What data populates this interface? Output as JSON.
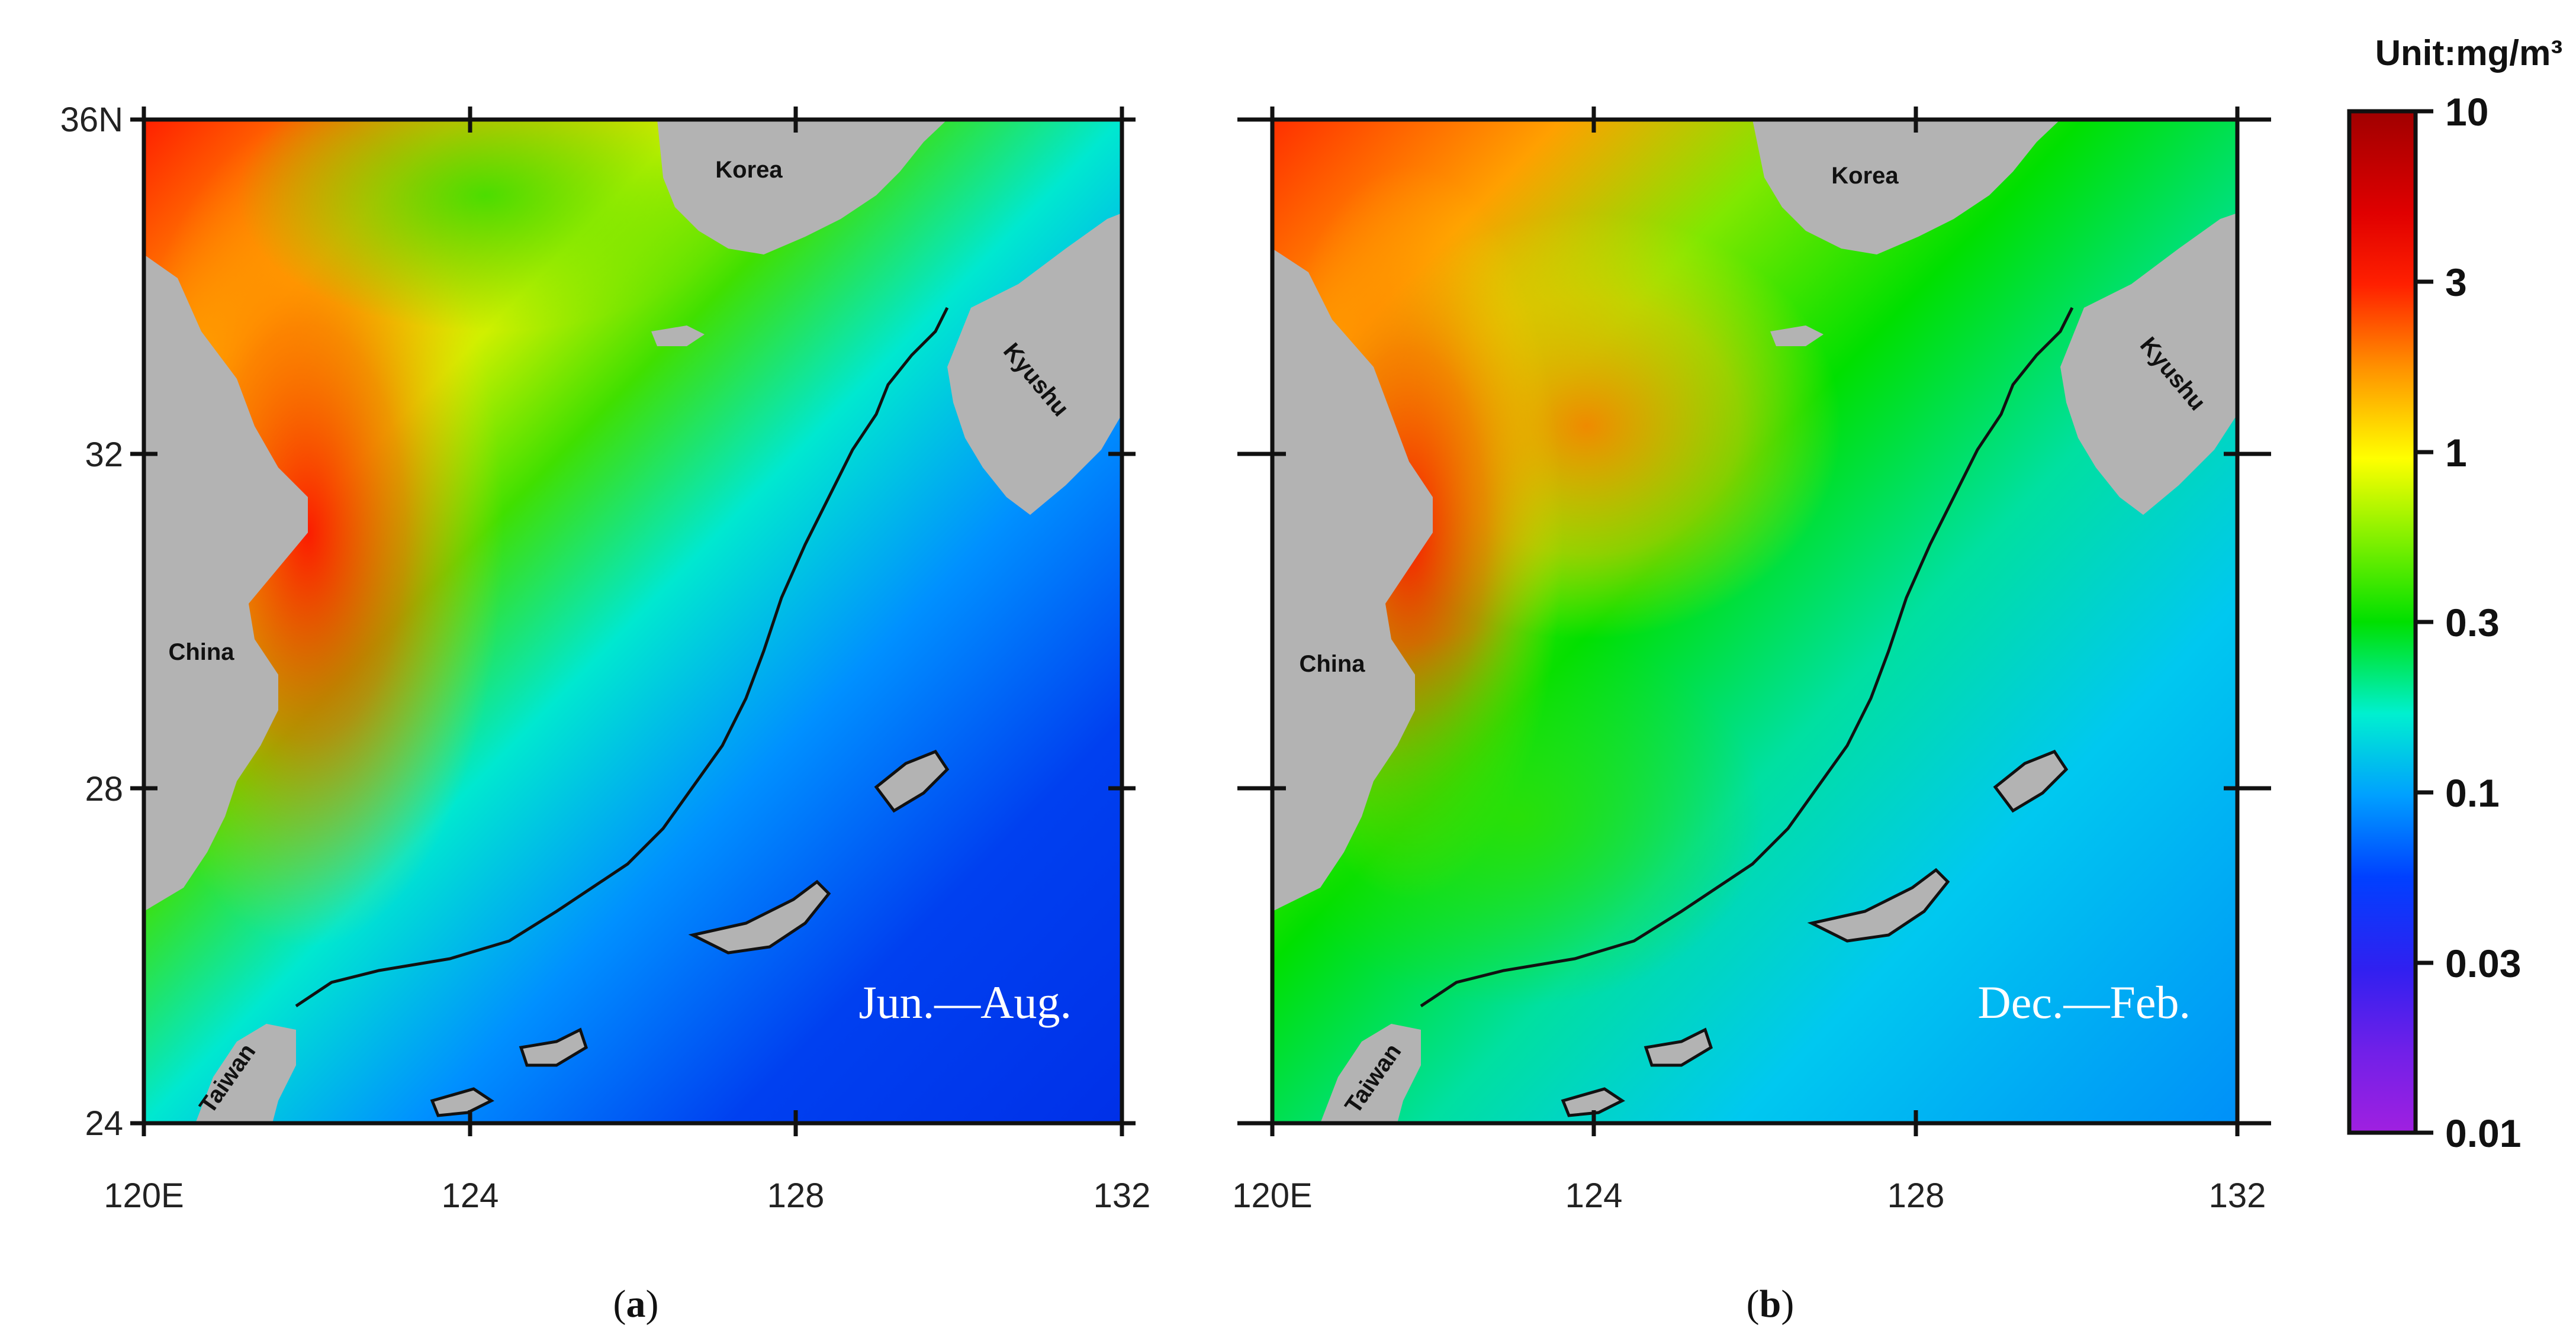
{
  "colorbar": {
    "unit": "Unit:mg/m³",
    "ticks": [
      "10",
      "3",
      "1",
      "0.3",
      "0.1",
      "0.03",
      "0.01"
    ],
    "colors": [
      "#a00000",
      "#ff2000",
      "#ffe000",
      "#00e000",
      "#00e8f0",
      "#0040ff",
      "#9a20e0"
    ]
  },
  "axes": {
    "x_ticks": [
      "120E",
      "124",
      "128",
      "132"
    ],
    "y_ticks": [
      "36N",
      "32",
      "28",
      "24"
    ]
  },
  "panels": [
    {
      "caption_open": "(",
      "caption_letter": "a",
      "caption_close": ")",
      "season": "Jun.—Aug.",
      "places": {
        "china": "China",
        "korea": "Korea",
        "kyushu": "Kyushu",
        "taiwan": "Taiwan"
      }
    },
    {
      "caption_open": "(",
      "caption_letter": "b",
      "caption_close": ")",
      "season": "Dec.—Feb.",
      "places": {
        "china": "China",
        "korea": "Korea",
        "kyushu": "Kyushu",
        "taiwan": "Taiwan"
      }
    }
  ]
}
